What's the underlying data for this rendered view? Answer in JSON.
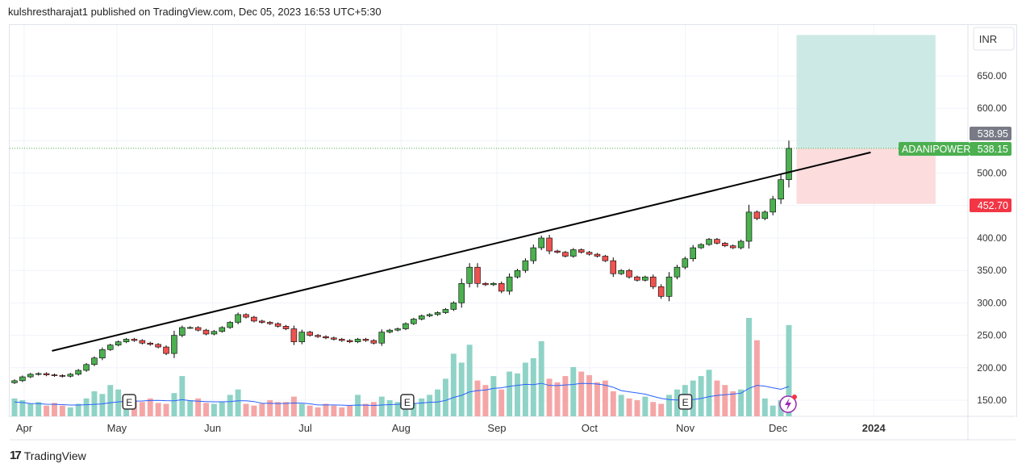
{
  "header": {
    "published": "kulshrestharajat1 published on TradingView.com, Dec 05, 2023 16:53 UTC+5:30"
  },
  "footer": {
    "brand": "TradingView"
  },
  "colors": {
    "up": "#4caf50",
    "down": "#ef5350",
    "vol_up": "#8fd3c6",
    "vol_down": "#f4a6a6",
    "volume_ma": "#2962ff",
    "target_zone": "#cde9e5",
    "stop_zone": "#fcdcdc",
    "last_price": "#4caf50",
    "stop_label": "#f23645",
    "high_label": "#787b86"
  },
  "chart_data": {
    "type": "candlestick",
    "symbol": "ADANIPOWER",
    "currency": "INR",
    "first_date": "2023-04-03",
    "last_date": "2023-12-05",
    "closes": [
      180,
      186,
      190,
      191,
      189,
      188,
      187,
      190,
      196,
      205,
      215,
      228,
      235,
      240,
      244,
      242,
      238,
      236,
      232,
      222,
      250,
      262,
      262,
      258,
      252,
      256,
      262,
      270,
      282,
      278,
      272,
      270,
      268,
      264,
      260,
      240,
      255,
      250,
      248,
      246,
      244,
      242,
      240,
      244,
      242,
      238,
      255,
      258,
      260,
      268,
      275,
      280,
      282,
      285,
      290,
      300,
      330,
      355,
      330,
      328,
      330,
      318,
      340,
      350,
      365,
      385,
      400,
      380,
      378,
      372,
      382,
      378,
      375,
      372,
      365,
      345,
      350,
      340,
      335,
      340,
      325,
      310,
      340,
      355,
      368,
      385,
      390,
      398,
      392,
      388,
      385,
      395,
      440,
      430,
      440,
      460,
      490,
      538.15
    ],
    "volume": [
      20,
      18,
      14,
      16,
      12,
      15,
      12,
      10,
      14,
      20,
      28,
      25,
      35,
      30,
      22,
      18,
      16,
      20,
      15,
      14,
      26,
      45,
      18,
      20,
      15,
      14,
      16,
      24,
      30,
      14,
      12,
      14,
      18,
      16,
      16,
      22,
      14,
      12,
      10,
      14,
      12,
      10,
      12,
      24,
      14,
      16,
      22,
      18,
      16,
      25,
      15,
      20,
      24,
      30,
      42,
      70,
      60,
      80,
      40,
      35,
      45,
      30,
      50,
      48,
      60,
      65,
      84,
      42,
      38,
      45,
      55,
      50,
      46,
      38,
      40,
      28,
      24,
      20,
      18,
      22,
      16,
      14,
      24,
      30,
      35,
      40,
      45,
      52,
      40,
      35,
      28,
      30,
      110,
      85,
      20,
      12,
      18,
      102
    ],
    "ylim": [
      125,
      725
    ],
    "y_ticks": [
      150,
      200,
      250,
      300,
      350,
      400,
      450,
      500,
      550,
      600,
      650
    ],
    "x_ticks": [
      {
        "date": "2023-04-01",
        "label": "Apr"
      },
      {
        "date": "2023-05-01",
        "label": "May"
      },
      {
        "date": "2023-06-01",
        "label": "Jun"
      },
      {
        "date": "2023-07-01",
        "label": "Jul"
      },
      {
        "date": "2023-08-01",
        "label": "Aug"
      },
      {
        "date": "2023-09-01",
        "label": "Sep"
      },
      {
        "date": "2023-10-01",
        "label": "Oct"
      },
      {
        "date": "2023-11-01",
        "label": "Nov"
      },
      {
        "date": "2023-12-01",
        "label": "Dec"
      },
      {
        "date": "2024-01-01",
        "label": "2024"
      }
    ],
    "trendline": [
      [
        "2023-04-10",
        226
      ],
      [
        "2023-12-31",
        532
      ]
    ],
    "position": {
      "start": "2023-12-07",
      "end": "2024-01-21",
      "target": 713,
      "entry": 538.15,
      "stop": 452.7
    },
    "price_labels": {
      "high": "538.95",
      "last": "538.15",
      "stop": "452.70"
    },
    "earnings_dates": [
      "2023-05-05",
      "2023-08-03",
      "2023-11-01"
    ],
    "earnings_label": "E",
    "grid": true
  }
}
